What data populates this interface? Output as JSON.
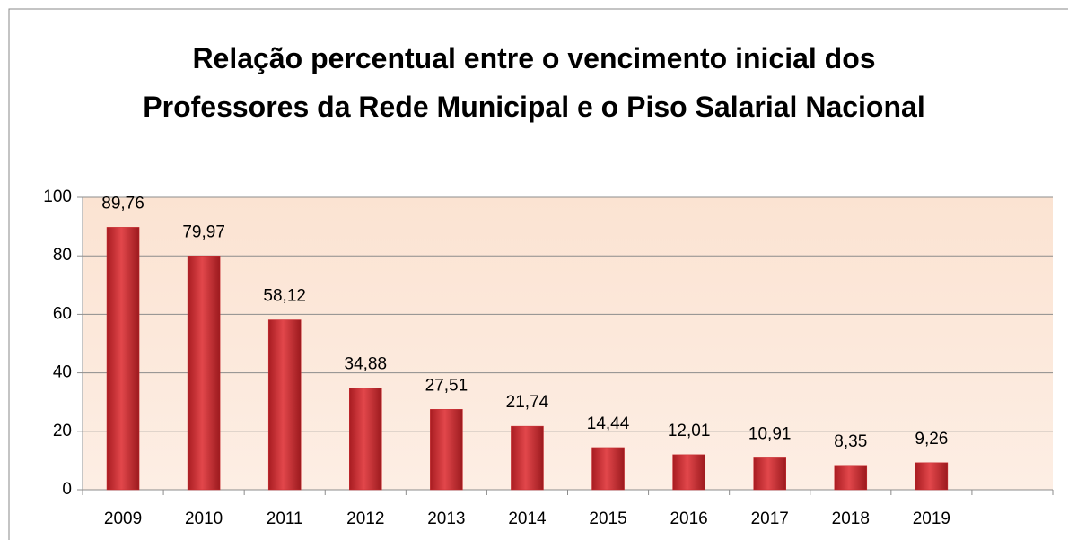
{
  "chart_data": {
    "type": "bar",
    "title": "Relação percentual entre o vencimento inicial dos Professores da Rede Municipal e o Piso Salarial Nacional",
    "categories": [
      "2009",
      "2010",
      "2011",
      "2012",
      "2013",
      "2014",
      "2015",
      "2016",
      "2017",
      "2018",
      "2019",
      null
    ],
    "values": [
      89.76,
      79.97,
      58.12,
      34.88,
      27.51,
      21.74,
      14.44,
      12.01,
      10.91,
      8.35,
      9.26,
      null
    ],
    "value_labels": [
      "89,76",
      "79,97",
      "58,12",
      "34,88",
      "27,51",
      "21,74",
      "14,44",
      "12,01",
      "10,91",
      "8,35",
      "9,26",
      null
    ],
    "color": "#c9282d",
    "ylim": [
      0,
      100
    ],
    "yticks": [
      0,
      20,
      40,
      60,
      80,
      100
    ],
    "grid": true
  }
}
